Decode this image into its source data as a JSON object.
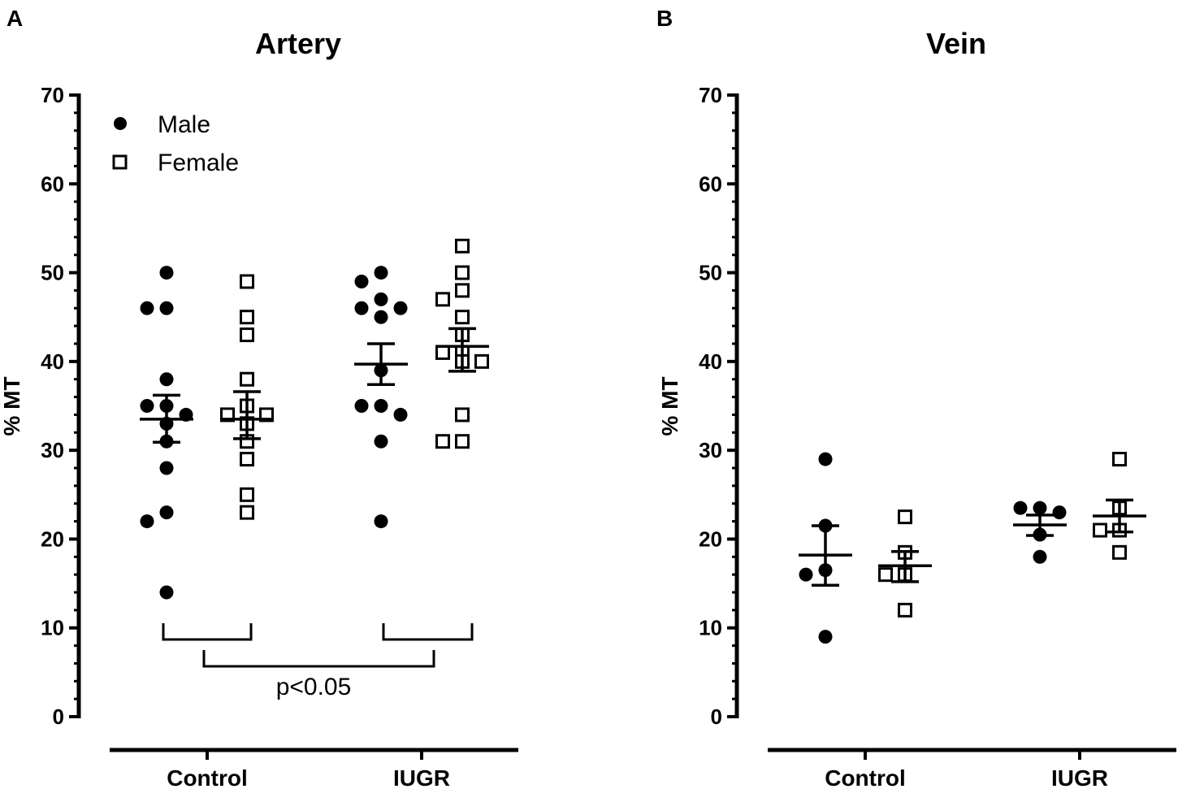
{
  "chart_data": [
    {
      "type": "scatter",
      "panel_label": "A",
      "title": "Artery",
      "ylabel": "% MT",
      "xlabel": "",
      "ylim": [
        0,
        70
      ],
      "yticks": [
        0,
        10,
        20,
        30,
        40,
        50,
        60,
        70
      ],
      "categories": [
        "Control",
        "IUGR"
      ],
      "legend": {
        "position": "top-left",
        "entries": [
          {
            "name": "Male",
            "marker": "filled-circle"
          },
          {
            "name": "Female",
            "marker": "open-square"
          }
        ]
      },
      "groups": [
        {
          "category": "Control",
          "sex": "Male",
          "values": [
            50,
            46,
            46,
            38,
            35,
            35,
            34,
            33,
            31,
            28,
            23,
            22,
            14
          ],
          "mean": 33.5,
          "sem_low": 30.9,
          "sem_high": 36.2
        },
        {
          "category": "Control",
          "sex": "Female",
          "values": [
            49,
            45,
            43,
            38,
            35,
            34,
            34,
            33,
            31,
            29,
            25,
            23
          ],
          "mean": 33.5,
          "sem_low": 31.3,
          "sem_high": 36.6
        },
        {
          "category": "IUGR",
          "sex": "Male",
          "values": [
            50,
            49,
            47,
            46,
            46,
            45,
            39,
            35,
            35,
            34,
            31,
            22
          ],
          "mean": 39.7,
          "sem_low": 37.4,
          "sem_high": 42.0
        },
        {
          "category": "IUGR",
          "sex": "Female",
          "values": [
            53,
            50,
            48,
            47,
            45,
            43,
            41,
            41,
            40,
            40,
            34,
            31,
            31
          ],
          "mean": 41.7,
          "sem_low": 38.9,
          "sem_high": 43.7
        }
      ],
      "annotation": {
        "text": "p<0.05",
        "compares": [
          "Control",
          "IUGR"
        ]
      }
    },
    {
      "type": "scatter",
      "panel_label": "B",
      "title": "Vein",
      "ylabel": "% MT",
      "xlabel": "",
      "ylim": [
        0,
        70
      ],
      "yticks": [
        0,
        10,
        20,
        30,
        40,
        50,
        60,
        70
      ],
      "categories": [
        "Control",
        "IUGR"
      ],
      "groups": [
        {
          "category": "Control",
          "sex": "Male",
          "values": [
            29,
            21.5,
            16.5,
            16,
            9
          ],
          "mean": 18.2,
          "sem_low": 14.8,
          "sem_high": 21.5
        },
        {
          "category": "Control",
          "sex": "Female",
          "values": [
            22.5,
            18.5,
            16,
            16,
            12
          ],
          "mean": 17.0,
          "sem_low": 15.2,
          "sem_high": 18.6
        },
        {
          "category": "IUGR",
          "sex": "Male",
          "values": [
            23.5,
            23.5,
            23,
            20.5,
            18
          ],
          "mean": 21.6,
          "sem_low": 20.4,
          "sem_high": 22.7
        },
        {
          "category": "IUGR",
          "sex": "Female",
          "values": [
            29,
            23.5,
            21,
            21,
            18.5
          ],
          "mean": 22.6,
          "sem_low": 20.8,
          "sem_high": 24.4
        }
      ]
    }
  ]
}
